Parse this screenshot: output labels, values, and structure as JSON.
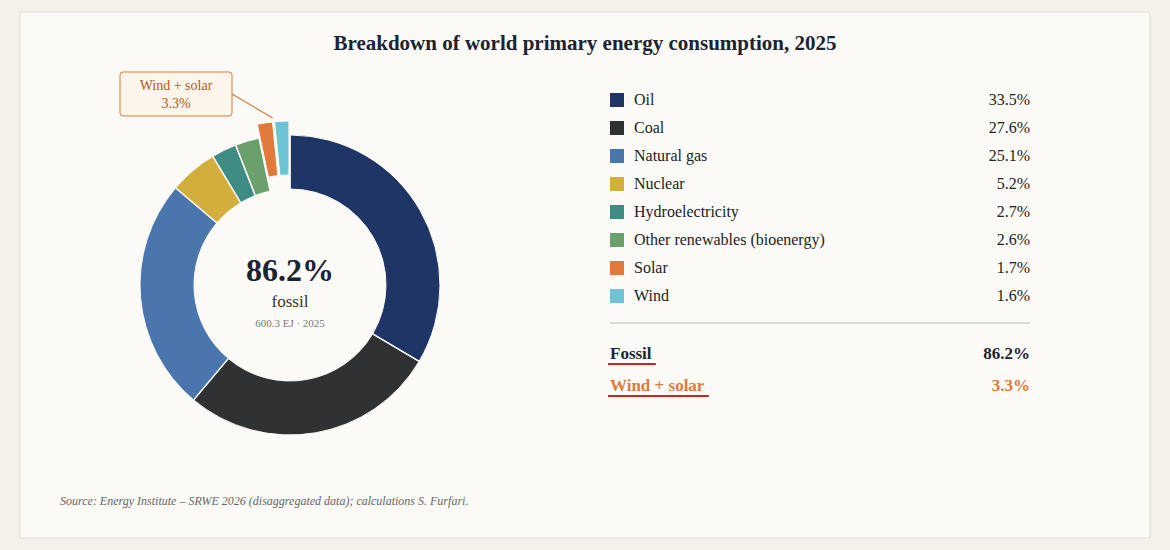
{
  "chart_data": {
    "type": "pie",
    "title": "Breakdown of world primary energy consumption, 2025",
    "categories": [
      "Oil",
      "Coal",
      "Natural gas",
      "Nuclear",
      "Hydroelectricity",
      "Other renewables (bioenergy)",
      "Solar",
      "Wind"
    ],
    "values": [
      33.5,
      27.6,
      25.1,
      5.2,
      2.7,
      2.6,
      1.7,
      1.6
    ],
    "value_labels": [
      "33.5%",
      "27.6%",
      "25.1%",
      "5.2%",
      "2.7%",
      "2.6%",
      "1.7%",
      "1.6%"
    ],
    "colors": [
      "#1e3566",
      "#2f3133",
      "#4a76ad",
      "#d2ae3c",
      "#3f8c84",
      "#6aa06c",
      "#df7a3a",
      "#6dc4d4"
    ],
    "legend": "right",
    "center": {
      "value": 86.2,
      "label": "86.2%",
      "caption": "fossil",
      "note": "600.3 EJ · 2025"
    },
    "annotation": {
      "text": "Wind + solar",
      "value": 3.3,
      "label": "3.3%"
    },
    "summary": [
      {
        "name": "Fossil",
        "value": 86.2,
        "label": "86.2%"
      },
      {
        "name": "Wind + solar",
        "value": 3.3,
        "label": "3.3%"
      }
    ],
    "source": "Source: Energy Institute – SRWE 2026 (disaggregated data); calculations S. Furfari."
  }
}
